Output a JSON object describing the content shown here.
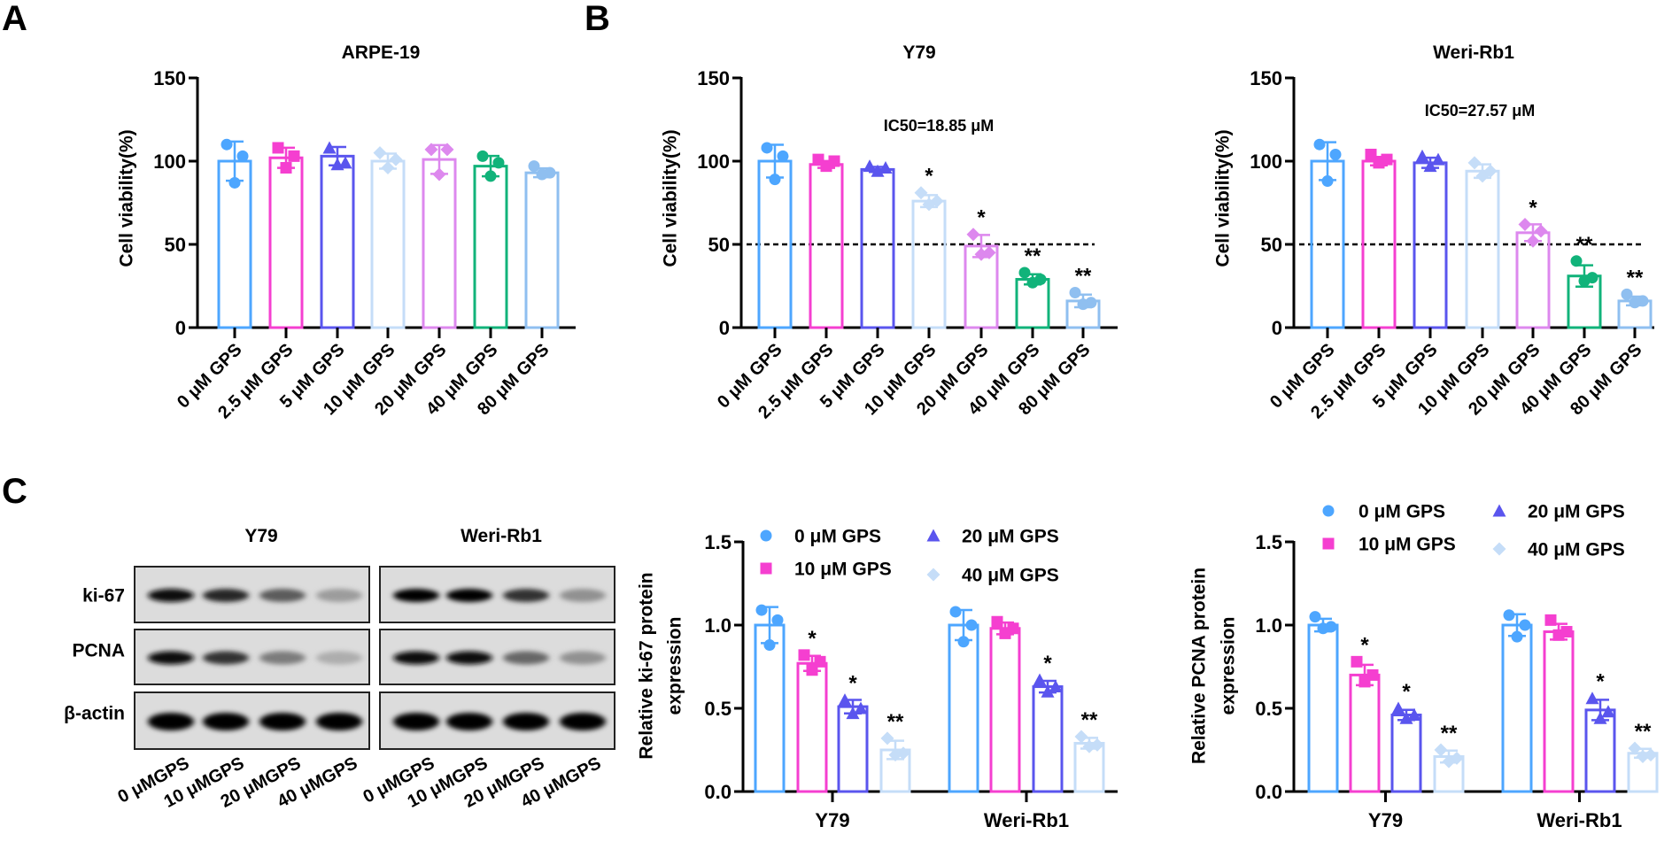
{
  "panel_labels": [
    "A",
    "B",
    "C"
  ],
  "colors": {
    "c0": "#4da6ff",
    "c2_5": "#f53fd0",
    "c5": "#5a55ee",
    "c10": "#c5ddf8",
    "c20": "#dd88ee",
    "c40": "#11b37a",
    "c80": "#8fbff0"
  },
  "chart_data": [
    {
      "id": "arpe19",
      "type": "bar",
      "title": "ARPE-19",
      "ylabel": [
        "Cell viability(%)"
      ],
      "xlabel": "",
      "ylim": [
        0,
        150
      ],
      "yticks": [
        "0",
        "50",
        "100",
        "150"
      ],
      "categories": [
        "0 μM GPS",
        "2.5 μM GPS",
        "5 μM GPS",
        "10 μM GPS",
        "20 μM GPS",
        "40 μM GPS",
        "80 μM GPS"
      ],
      "colors": [
        "#4da6ff",
        "#f53fd0",
        "#5a55ee",
        "#c5ddf8",
        "#dd88ee",
        "#11b37a",
        "#8fbff0"
      ],
      "markers": [
        "circle",
        "square",
        "triangle",
        "diamond",
        "diamond",
        "circle",
        "circle"
      ],
      "values": [
        100,
        102,
        103,
        100,
        101,
        97,
        93
      ],
      "points": [
        [
          110,
          103,
          87
        ],
        [
          108,
          103,
          96
        ],
        [
          108,
          99,
          98
        ],
        [
          105,
          101,
          96
        ],
        [
          107,
          107,
          92
        ],
        [
          103,
          99,
          91
        ],
        [
          97,
          93,
          92
        ]
      ],
      "significance": [
        "",
        "",
        "",
        "",
        "",
        "",
        ""
      ]
    },
    {
      "id": "y79-viability",
      "type": "bar",
      "title": "Y79",
      "ylabel": [
        "Cell viability(%)"
      ],
      "xlabel": "",
      "ylim": [
        0,
        150
      ],
      "yticks": [
        "0",
        "50",
        "100",
        "150"
      ],
      "annotation": "IC50=18.85 μM",
      "reference_line": 50,
      "categories": [
        "0 μM GPS",
        "2.5 μM GPS",
        "5 μM GPS",
        "10 μM GPS",
        "20 μM GPS",
        "40 μM GPS",
        "80 μM GPS"
      ],
      "colors": [
        "#4da6ff",
        "#f53fd0",
        "#5a55ee",
        "#c5ddf8",
        "#dd88ee",
        "#11b37a",
        "#8fbff0"
      ],
      "markers": [
        "circle",
        "square",
        "triangle",
        "diamond",
        "diamond",
        "circle",
        "circle"
      ],
      "values": [
        100,
        98,
        95,
        76,
        49,
        29,
        16
      ],
      "points": [
        [
          108,
          103,
          89
        ],
        [
          101,
          100,
          97
        ],
        [
          97,
          96,
          94
        ],
        [
          81,
          76,
          74
        ],
        [
          56,
          45,
          44
        ],
        [
          33,
          29,
          27
        ],
        [
          21,
          15,
          14
        ]
      ],
      "significance": [
        "",
        "",
        "",
        "*",
        "*",
        "**",
        "**"
      ]
    },
    {
      "id": "werirb1-viability",
      "type": "bar",
      "title": "Weri-Rb1",
      "ylabel": [
        "Cell viability(%)"
      ],
      "xlabel": "",
      "ylim": [
        0,
        150
      ],
      "yticks": [
        "0",
        "50",
        "100",
        "150"
      ],
      "annotation": "IC50=27.57 μM",
      "reference_line": 50,
      "categories": [
        "0 μM GPS",
        "2.5 μM GPS",
        "5 μM GPS",
        "10 μM GPS",
        "20 μM GPS",
        "40 μM GPS",
        "80 μM GPS"
      ],
      "colors": [
        "#4da6ff",
        "#f53fd0",
        "#5a55ee",
        "#c5ddf8",
        "#dd88ee",
        "#11b37a",
        "#8fbff0"
      ],
      "markers": [
        "circle",
        "square",
        "triangle",
        "diamond",
        "diamond",
        "circle",
        "circle"
      ],
      "values": [
        100,
        100,
        99,
        94,
        57,
        31,
        16
      ],
      "points": [
        [
          110,
          104,
          88
        ],
        [
          104,
          101,
          99
        ],
        [
          103,
          101,
          97
        ],
        [
          99,
          94,
          91
        ],
        [
          62,
          58,
          52
        ],
        [
          40,
          30,
          28
        ],
        [
          20,
          16,
          15
        ]
      ],
      "significance": [
        "",
        "",
        "",
        "",
        "*",
        "**",
        "**"
      ]
    },
    {
      "id": "ki67-expression",
      "type": "bar",
      "title": "",
      "ylabel": [
        "Relative ki-67 protein",
        "expression"
      ],
      "xlabel": "",
      "ylim": [
        0,
        1.5
      ],
      "yticks": [
        "0.0",
        "0.5",
        "1.0",
        "1.5"
      ],
      "legend": [
        "0 μM GPS",
        "10 μM GPS",
        "20 μM GPS",
        "40 μM GPS"
      ],
      "legend_position": "top",
      "colors": [
        "#4da6ff",
        "#f53fd0",
        "#5a55ee",
        "#c5ddf8"
      ],
      "markers": [
        "circle",
        "square",
        "triangle",
        "diamond"
      ],
      "groups": [
        "Y79",
        "Weri-Rb1"
      ],
      "series_values": [
        [
          1.0,
          0.77,
          0.51,
          0.25
        ],
        [
          1.0,
          0.98,
          0.63,
          0.29
        ]
      ],
      "points": [
        [
          [
            1.09,
            1.03,
            0.88
          ],
          [
            0.82,
            0.78,
            0.73
          ],
          [
            0.55,
            0.5,
            0.47
          ],
          [
            0.32,
            0.23,
            0.22
          ]
        ],
        [
          [
            1.08,
            1.0,
            0.9
          ],
          [
            1.02,
            0.98,
            0.95
          ],
          [
            0.67,
            0.63,
            0.6
          ],
          [
            0.33,
            0.28,
            0.27
          ]
        ]
      ],
      "significance": [
        [
          "",
          "*",
          "*",
          "**"
        ],
        [
          "",
          "",
          "*",
          "**"
        ]
      ]
    },
    {
      "id": "pcna-expression",
      "type": "bar",
      "title": "",
      "ylabel": [
        "Relative PCNA protein",
        "expression"
      ],
      "xlabel": "",
      "ylim": [
        0,
        1.5
      ],
      "yticks": [
        "0.0",
        "0.5",
        "1.0",
        "1.5"
      ],
      "legend": [
        "0 μM GPS",
        "10 μM GPS",
        "20 μM GPS",
        "40 μM GPS"
      ],
      "legend_position": "top",
      "colors": [
        "#4da6ff",
        "#f53fd0",
        "#5a55ee",
        "#c5ddf8"
      ],
      "markers": [
        "circle",
        "square",
        "triangle",
        "diamond"
      ],
      "groups": [
        "Y79",
        "Weri-Rb1"
      ],
      "series_values": [
        [
          1.0,
          0.7,
          0.46,
          0.21
        ],
        [
          1.0,
          0.96,
          0.49,
          0.23
        ]
      ],
      "points": [
        [
          [
            1.05,
            0.99,
            0.98
          ],
          [
            0.78,
            0.7,
            0.66
          ],
          [
            0.5,
            0.46,
            0.44
          ],
          [
            0.25,
            0.2,
            0.18
          ]
        ],
        [
          [
            1.06,
            1.0,
            0.93
          ],
          [
            1.03,
            0.96,
            0.94
          ],
          [
            0.56,
            0.48,
            0.44
          ],
          [
            0.26,
            0.22,
            0.21
          ]
        ]
      ],
      "significance": [
        [
          "",
          "*",
          "*",
          "**"
        ],
        [
          "",
          "",
          "*",
          "**"
        ]
      ]
    }
  ],
  "western_blot": {
    "cell_lines": [
      "Y79",
      "Weri-Rb1"
    ],
    "proteins": [
      "ki-67",
      "PCNA",
      "β-actin"
    ],
    "lanes": [
      "0 μMGPS",
      "10 μMGPS",
      "20 μMGPS",
      "40 μMGPS"
    ],
    "band_intensity": {
      "Y79": [
        [
          0.95,
          0.85,
          0.6,
          0.3
        ],
        [
          0.95,
          0.8,
          0.45,
          0.22
        ],
        [
          1,
          1,
          1,
          1
        ]
      ],
      "Weri-Rb1": [
        [
          1,
          1,
          0.8,
          0.35
        ],
        [
          0.95,
          0.95,
          0.55,
          0.35
        ],
        [
          1,
          1,
          1,
          1
        ]
      ]
    }
  }
}
